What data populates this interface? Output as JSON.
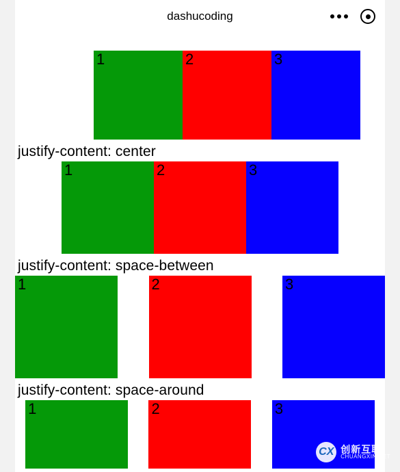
{
  "header": {
    "title": "dashucoding"
  },
  "sections": [
    {
      "label_partial": ", , ,",
      "layout": "first-row",
      "boxes": [
        {
          "label": "1",
          "color": "green",
          "color_hex": "#059908"
        },
        {
          "label": "2",
          "color": "red",
          "color_hex": "#ff0000"
        },
        {
          "label": "3",
          "color": "blue",
          "color_hex": "#0600ff"
        }
      ]
    },
    {
      "label": "justify-content: center",
      "layout": "center",
      "boxes": [
        {
          "label": "1",
          "color": "green",
          "color_hex": "#059908"
        },
        {
          "label": "2",
          "color": "red",
          "color_hex": "#ff0000"
        },
        {
          "label": "3",
          "color": "blue",
          "color_hex": "#0600ff"
        }
      ]
    },
    {
      "label": "justify-content: space-between",
      "layout": "space-between",
      "boxes": [
        {
          "label": "1",
          "color": "green",
          "color_hex": "#059908"
        },
        {
          "label": "2",
          "color": "red",
          "color_hex": "#ff0000"
        },
        {
          "label": "3",
          "color": "blue",
          "color_hex": "#0600ff"
        }
      ]
    },
    {
      "label": "justify-content: space-around",
      "layout": "space-around",
      "boxes": [
        {
          "label": "1",
          "color": "green",
          "color_hex": "#059908"
        },
        {
          "label": "2",
          "color": "red",
          "color_hex": "#ff0000"
        },
        {
          "label": "3",
          "color": "blue",
          "color_hex": "#0600ff"
        }
      ]
    }
  ],
  "watermark": {
    "logo_text": "CX",
    "cn": "创新互联",
    "en": "CHUANGXIN NET"
  },
  "styling": {
    "page_bg": "#f2f2f2",
    "screen_bg": "#ffffff",
    "box_colors": {
      "green": "#059908",
      "red": "#ff0000",
      "blue": "#0600ff"
    },
    "label_fontsize": 21,
    "box_label_fontsize": 22,
    "title_fontsize": 17
  }
}
